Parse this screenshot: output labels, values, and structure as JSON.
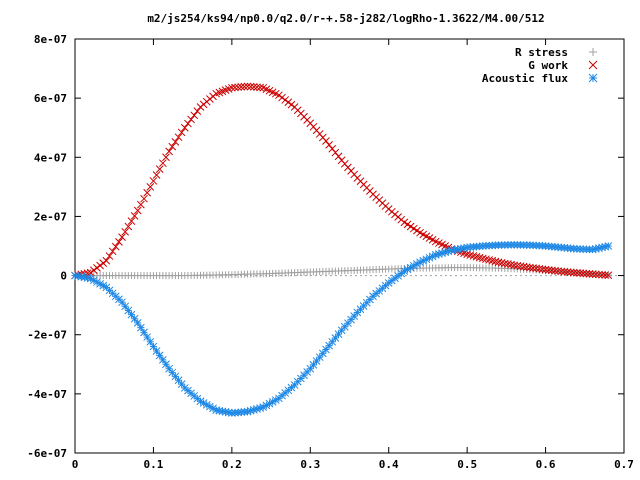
{
  "chart_data": {
    "type": "scatter",
    "title": "m2/js254/ks94/np0.0/q2.0/r-+.58-j282/logRho-1.3622/M4.00/512",
    "xlabel": "",
    "ylabel": "",
    "xlim": [
      0,
      0.7
    ],
    "ylim": [
      -6e-07,
      8e-07
    ],
    "x_ticks": [
      0,
      0.1,
      0.2,
      0.3,
      0.4,
      0.5,
      0.6,
      0.7
    ],
    "x_tick_labels": [
      "0",
      "0.1",
      "0.2",
      "0.3",
      "0.4",
      "0.5",
      "0.6",
      "0.7"
    ],
    "y_ticks": [
      -6e-07,
      -4e-07,
      -2e-07,
      0,
      2e-07,
      4e-07,
      6e-07,
      8e-07
    ],
    "y_tick_labels": [
      "-6e-07",
      "-4e-07",
      "-2e-07",
      "0",
      "2e-07",
      "4e-07",
      "6e-07",
      "8e-07"
    ],
    "grid": false,
    "legend_position": "top-right",
    "x": [
      0,
      0.02,
      0.04,
      0.06,
      0.08,
      0.1,
      0.12,
      0.14,
      0.16,
      0.18,
      0.2,
      0.22,
      0.24,
      0.26,
      0.28,
      0.3,
      0.32,
      0.34,
      0.36,
      0.38,
      0.4,
      0.42,
      0.44,
      0.46,
      0.48,
      0.5,
      0.52,
      0.54,
      0.56,
      0.58,
      0.6,
      0.62,
      0.64,
      0.66,
      0.68
    ],
    "series": [
      {
        "name": "R stress",
        "marker": "plus",
        "color": "#a0a0a0",
        "values": [
          0,
          0,
          0,
          0,
          0,
          0,
          0,
          0,
          1e-09,
          2e-09,
          3e-09,
          5e-09,
          6e-09,
          8e-09,
          1e-08,
          1.2e-08,
          1.4e-08,
          1.6e-08,
          1.8e-08,
          2e-08,
          2.2e-08,
          2.4e-08,
          2.5e-08,
          2.6e-08,
          2.7e-08,
          2.7e-08,
          2.6e-08,
          2.5e-08,
          2.3e-08,
          2e-08,
          1.7e-08,
          1.4e-08,
          1e-08,
          6e-09,
          2e-09
        ]
      },
      {
        "name": "G work",
        "marker": "cross",
        "color": "#cc0000",
        "values": [
          0,
          1e-08,
          5e-08,
          1.3e-07,
          2.2e-07,
          3.2e-07,
          4.2e-07,
          5e-07,
          5.7e-07,
          6.15e-07,
          6.35e-07,
          6.4e-07,
          6.35e-07,
          6.1e-07,
          5.7e-07,
          5.15e-07,
          4.55e-07,
          3.9e-07,
          3.3e-07,
          2.75e-07,
          2.25e-07,
          1.8e-07,
          1.45e-07,
          1.15e-07,
          9e-08,
          7.2e-08,
          5.8e-08,
          4.5e-08,
          3.5e-08,
          2.7e-08,
          2e-08,
          1.4e-08,
          9e-09,
          5e-09,
          1e-09
        ]
      },
      {
        "name": "Acoustic flux",
        "marker": "star",
        "color": "#1e88e5",
        "values": [
          0,
          -1e-08,
          -4e-08,
          -9e-08,
          -1.6e-07,
          -2.4e-07,
          -3.15e-07,
          -3.8e-07,
          -4.25e-07,
          -4.55e-07,
          -4.65e-07,
          -4.6e-07,
          -4.45e-07,
          -4.15e-07,
          -3.7e-07,
          -3.15e-07,
          -2.5e-07,
          -1.85e-07,
          -1.25e-07,
          -7e-08,
          -2.5e-08,
          1.5e-08,
          4.5e-08,
          7e-08,
          8.5e-08,
          9.5e-08,
          1e-07,
          1.03e-07,
          1.04e-07,
          1.03e-07,
          1e-07,
          9.5e-08,
          9e-08,
          8.8e-08,
          1e-07
        ]
      }
    ]
  }
}
